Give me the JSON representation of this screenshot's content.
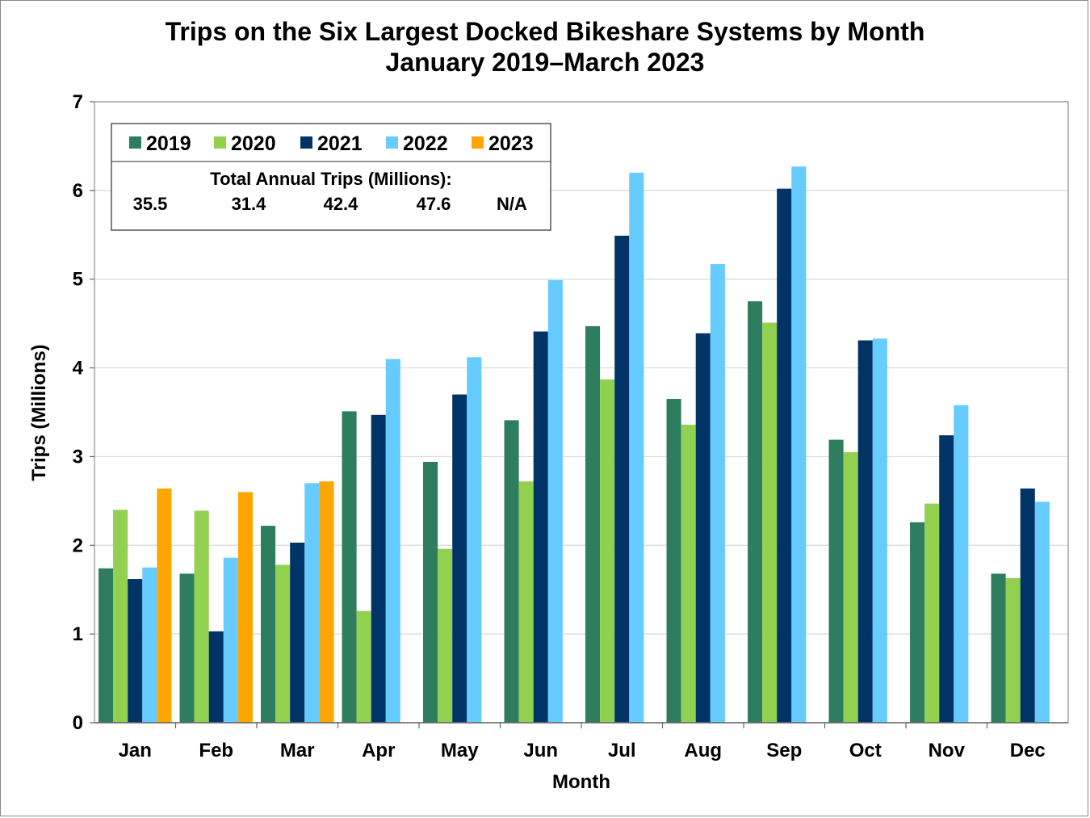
{
  "chart_data": {
    "type": "bar",
    "title": "Trips on the Six Largest Docked Bikeshare Systems by Month",
    "subtitle": "January 2019–March 2023",
    "xlabel": "Month",
    "ylabel": "Trips (Millions)",
    "ylim": [
      0,
      7
    ],
    "yticks": [
      "0",
      "1",
      "2",
      "3",
      "4",
      "5",
      "6",
      "7"
    ],
    "grid": true,
    "legend_position": "top-left",
    "categories": [
      "Jan",
      "Feb",
      "Mar",
      "Apr",
      "May",
      "Jun",
      "Jul",
      "Aug",
      "Sep",
      "Oct",
      "Nov",
      "Dec"
    ],
    "series": [
      {
        "name": "2019",
        "color": "#2e7d5f",
        "values": [
          1.74,
          1.68,
          2.22,
          3.51,
          2.94,
          3.41,
          4.47,
          3.65,
          4.75,
          3.19,
          2.26,
          1.68
        ]
      },
      {
        "name": "2020",
        "color": "#92d050",
        "values": [
          2.4,
          2.39,
          1.78,
          1.26,
          1.96,
          2.72,
          3.87,
          3.36,
          4.51,
          3.05,
          2.47,
          1.63
        ]
      },
      {
        "name": "2021",
        "color": "#003366",
        "values": [
          1.62,
          1.03,
          2.03,
          3.47,
          3.7,
          4.41,
          5.49,
          4.39,
          6.02,
          4.31,
          3.24,
          2.64
        ]
      },
      {
        "name": "2022",
        "color": "#66ccff",
        "values": [
          1.75,
          1.86,
          2.7,
          4.1,
          4.12,
          4.99,
          6.2,
          5.17,
          6.27,
          4.33,
          3.58,
          2.49
        ]
      },
      {
        "name": "2023",
        "color": "#ffa500",
        "values": [
          2.64,
          2.6,
          2.72,
          null,
          null,
          null,
          null,
          null,
          null,
          null,
          null,
          null
        ]
      }
    ],
    "annotation": {
      "heading": "Total Annual Trips (Millions):",
      "values": [
        "35.5",
        "31.4",
        "42.4",
        "47.6",
        "N/A"
      ]
    }
  }
}
